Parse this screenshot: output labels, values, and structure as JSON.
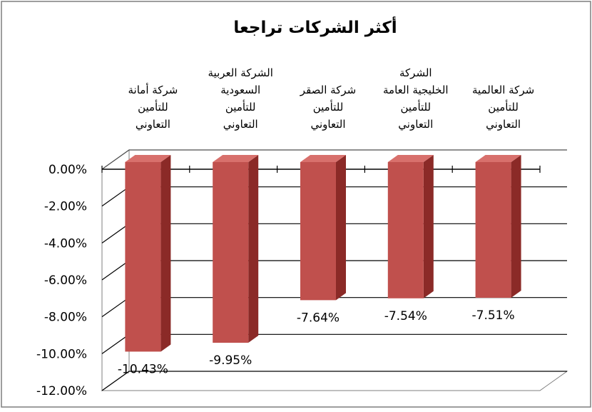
{
  "chart_data": {
    "type": "bar",
    "title": "أكثر الشركات تراجعا",
    "xlabel": "",
    "ylabel": "",
    "ylim": [
      -12,
      0
    ],
    "yticks": [
      "0.00%",
      "-2.00%",
      "-4.00%",
      "-6.00%",
      "-8.00%",
      "-10.00%",
      "-12.00%"
    ],
    "grid": true,
    "categories": [
      [
        "شركة أمانة",
        "للتأمين",
        "التعاوني"
      ],
      [
        "الشركة العربية",
        "السعودية",
        "للتأمين",
        "التعاوني"
      ],
      [
        "شركة الصقر",
        "للتأمين",
        "التعاوني"
      ],
      [
        "الشركة",
        "الخليجية العامة",
        "للتأمين",
        "التعاوني"
      ],
      [
        "شركة العالمية",
        "للتأمين",
        "التعاوني"
      ]
    ],
    "values": [
      -10.43,
      -9.95,
      -7.64,
      -7.54,
      -7.51
    ],
    "data_labels": [
      "-10.43%",
      "-9.95%",
      "-7.64%",
      "-7.54%",
      "-7.51%"
    ],
    "colors": {
      "bar_front": "#c0504d",
      "bar_side": "#8b2a27",
      "bar_top": "#d8706c",
      "grid": "#000000"
    }
  }
}
